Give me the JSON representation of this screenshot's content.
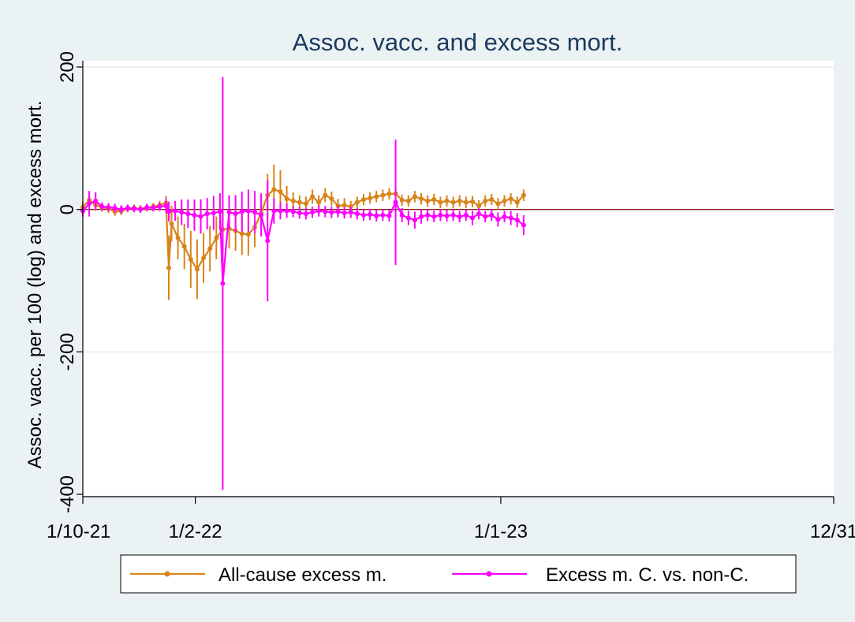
{
  "chart_data": {
    "type": "line",
    "title": "Assoc. vacc. and excess mort.",
    "ylabel": "Assoc. vacc. per 100 (log) and excess mort.",
    "xlabel": "",
    "xlim": [
      "2021-10-01",
      "2023-12-31"
    ],
    "ylim": [
      -400,
      200
    ],
    "y_ticks": [
      200,
      0,
      -200,
      -400
    ],
    "x_ticks": [
      {
        "date": "2021-10-01",
        "label": "1/10-21"
      },
      {
        "date": "2022-02-01",
        "label": "1/2-22"
      },
      {
        "date": "2023-01-01",
        "label": "1/1-23"
      },
      {
        "date": "2023-12-31",
        "label": "12/31"
      }
    ],
    "grid": true,
    "zero_line_color": "#8b1a1a",
    "legend_position": "bottom",
    "series": [
      {
        "name": "All-cause excess m.",
        "color": "#d8841b",
        "points": [
          [
            "2021-10-01",
            3,
            8
          ],
          [
            "2021-10-08",
            13,
            10
          ],
          [
            "2021-10-15",
            6,
            8
          ],
          [
            "2021-10-22",
            3,
            6
          ],
          [
            "2021-10-29",
            1,
            6
          ],
          [
            "2021-11-05",
            -3,
            6
          ],
          [
            "2021-11-12",
            -2,
            6
          ],
          [
            "2021-11-19",
            1,
            5
          ],
          [
            "2021-11-26",
            2,
            5
          ],
          [
            "2021-12-03",
            1,
            5
          ],
          [
            "2021-12-10",
            2,
            5
          ],
          [
            "2021-12-17",
            4,
            5
          ],
          [
            "2021-12-24",
            6,
            6
          ],
          [
            "2021-12-31",
            9,
            10
          ],
          [
            "2022-01-03",
            -82,
            45
          ],
          [
            "2022-01-06",
            -20,
            25
          ],
          [
            "2022-01-13",
            -40,
            30
          ],
          [
            "2022-01-20",
            -52,
            32
          ],
          [
            "2022-01-27",
            -70,
            40
          ],
          [
            "2022-02-03",
            -84,
            42
          ],
          [
            "2022-02-10",
            -68,
            35
          ],
          [
            "2022-02-17",
            -55,
            32
          ],
          [
            "2022-02-24",
            -40,
            30
          ],
          [
            "2022-03-03",
            -28,
            30
          ],
          [
            "2022-03-10",
            -27,
            28
          ],
          [
            "2022-03-17",
            -30,
            28
          ],
          [
            "2022-03-24",
            -34,
            30
          ],
          [
            "2022-03-31",
            -35,
            30
          ],
          [
            "2022-04-07",
            -25,
            28
          ],
          [
            "2022-04-14",
            -5,
            28
          ],
          [
            "2022-04-21",
            20,
            30
          ],
          [
            "2022-04-28",
            28,
            35
          ],
          [
            "2022-05-05",
            25,
            30
          ],
          [
            "2022-05-12",
            15,
            18
          ],
          [
            "2022-05-19",
            12,
            12
          ],
          [
            "2022-05-26",
            10,
            10
          ],
          [
            "2022-06-02",
            8,
            10
          ],
          [
            "2022-06-09",
            18,
            10
          ],
          [
            "2022-06-16",
            10,
            10
          ],
          [
            "2022-06-23",
            20,
            10
          ],
          [
            "2022-06-30",
            15,
            10
          ],
          [
            "2022-07-07",
            5,
            10
          ],
          [
            "2022-07-14",
            6,
            10
          ],
          [
            "2022-07-21",
            4,
            8
          ],
          [
            "2022-07-28",
            10,
            8
          ],
          [
            "2022-08-04",
            14,
            8
          ],
          [
            "2022-08-11",
            16,
            8
          ],
          [
            "2022-08-18",
            18,
            8
          ],
          [
            "2022-08-25",
            20,
            8
          ],
          [
            "2022-09-01",
            22,
            8
          ],
          [
            "2022-09-08",
            22,
            10
          ],
          [
            "2022-09-15",
            13,
            8
          ],
          [
            "2022-09-22",
            12,
            8
          ],
          [
            "2022-09-29",
            18,
            8
          ],
          [
            "2022-10-06",
            15,
            8
          ],
          [
            "2022-10-13",
            12,
            8
          ],
          [
            "2022-10-20",
            14,
            8
          ],
          [
            "2022-10-27",
            10,
            8
          ],
          [
            "2022-11-03",
            12,
            8
          ],
          [
            "2022-11-10",
            10,
            8
          ],
          [
            "2022-11-17",
            12,
            8
          ],
          [
            "2022-11-24",
            10,
            8
          ],
          [
            "2022-12-01",
            11,
            8
          ],
          [
            "2022-12-08",
            5,
            8
          ],
          [
            "2022-12-15",
            12,
            8
          ],
          [
            "2022-12-22",
            14,
            8
          ],
          [
            "2022-12-29",
            8,
            8
          ],
          [
            "2023-01-05",
            12,
            8
          ],
          [
            "2023-01-12",
            15,
            8
          ],
          [
            "2023-01-19",
            10,
            8
          ],
          [
            "2023-01-26",
            20,
            8
          ]
        ]
      },
      {
        "name": "Excess m. C. vs. non-C.",
        "color": "#ff00ff",
        "points": [
          [
            "2021-10-01",
            -2,
            8
          ],
          [
            "2021-10-08",
            8,
            18
          ],
          [
            "2021-10-15",
            12,
            12
          ],
          [
            "2021-10-22",
            4,
            6
          ],
          [
            "2021-10-29",
            3,
            6
          ],
          [
            "2021-11-05",
            2,
            6
          ],
          [
            "2021-11-12",
            0,
            6
          ],
          [
            "2021-11-19",
            2,
            5
          ],
          [
            "2021-11-26",
            1,
            5
          ],
          [
            "2021-12-03",
            0,
            5
          ],
          [
            "2021-12-10",
            3,
            5
          ],
          [
            "2021-12-17",
            2,
            5
          ],
          [
            "2021-12-24",
            4,
            6
          ],
          [
            "2021-12-31",
            5,
            10
          ],
          [
            "2022-01-03",
            -3,
            14
          ],
          [
            "2022-01-10",
            -2,
            14
          ],
          [
            "2022-01-17",
            -4,
            18
          ],
          [
            "2022-01-24",
            -6,
            20
          ],
          [
            "2022-01-31",
            -8,
            22
          ],
          [
            "2022-02-07",
            -10,
            24
          ],
          [
            "2022-02-14",
            -6,
            22
          ],
          [
            "2022-02-21",
            -5,
            24
          ],
          [
            "2022-02-28",
            -3,
            26
          ],
          [
            "2022-03-03",
            -104,
            290
          ],
          [
            "2022-03-10",
            -4,
            24
          ],
          [
            "2022-03-17",
            -6,
            26
          ],
          [
            "2022-03-24",
            -3,
            28
          ],
          [
            "2022-03-31",
            -2,
            30
          ],
          [
            "2022-04-07",
            -4,
            30
          ],
          [
            "2022-04-14",
            -8,
            30
          ],
          [
            "2022-04-21",
            -44,
            85
          ],
          [
            "2022-04-28",
            -2,
            18
          ],
          [
            "2022-05-05",
            -2,
            12
          ],
          [
            "2022-05-12",
            -2,
            10
          ],
          [
            "2022-05-19",
            -3,
            8
          ],
          [
            "2022-05-26",
            -5,
            8
          ],
          [
            "2022-06-02",
            -6,
            8
          ],
          [
            "2022-06-09",
            -4,
            8
          ],
          [
            "2022-06-16",
            -2,
            8
          ],
          [
            "2022-06-23",
            -3,
            8
          ],
          [
            "2022-06-30",
            -4,
            8
          ],
          [
            "2022-07-07",
            -3,
            8
          ],
          [
            "2022-07-14",
            -5,
            8
          ],
          [
            "2022-07-21",
            -4,
            8
          ],
          [
            "2022-07-28",
            -6,
            8
          ],
          [
            "2022-08-04",
            -8,
            8
          ],
          [
            "2022-08-11",
            -7,
            8
          ],
          [
            "2022-08-18",
            -9,
            8
          ],
          [
            "2022-08-25",
            -8,
            8
          ],
          [
            "2022-09-01",
            -9,
            8
          ],
          [
            "2022-09-08",
            10,
            88
          ],
          [
            "2022-09-15",
            -8,
            10
          ],
          [
            "2022-09-22",
            -12,
            10
          ],
          [
            "2022-09-29",
            -15,
            12
          ],
          [
            "2022-10-06",
            -10,
            10
          ],
          [
            "2022-10-13",
            -8,
            8
          ],
          [
            "2022-10-20",
            -10,
            8
          ],
          [
            "2022-10-27",
            -8,
            8
          ],
          [
            "2022-11-03",
            -9,
            8
          ],
          [
            "2022-11-10",
            -8,
            8
          ],
          [
            "2022-11-17",
            -10,
            8
          ],
          [
            "2022-11-24",
            -8,
            8
          ],
          [
            "2022-12-01",
            -12,
            10
          ],
          [
            "2022-12-08",
            -6,
            8
          ],
          [
            "2022-12-15",
            -10,
            8
          ],
          [
            "2022-12-22",
            -8,
            8
          ],
          [
            "2022-12-29",
            -14,
            10
          ],
          [
            "2023-01-05",
            -10,
            8
          ],
          [
            "2023-01-12",
            -12,
            10
          ],
          [
            "2023-01-19",
            -15,
            10
          ],
          [
            "2023-01-26",
            -22,
            14
          ]
        ]
      }
    ]
  }
}
